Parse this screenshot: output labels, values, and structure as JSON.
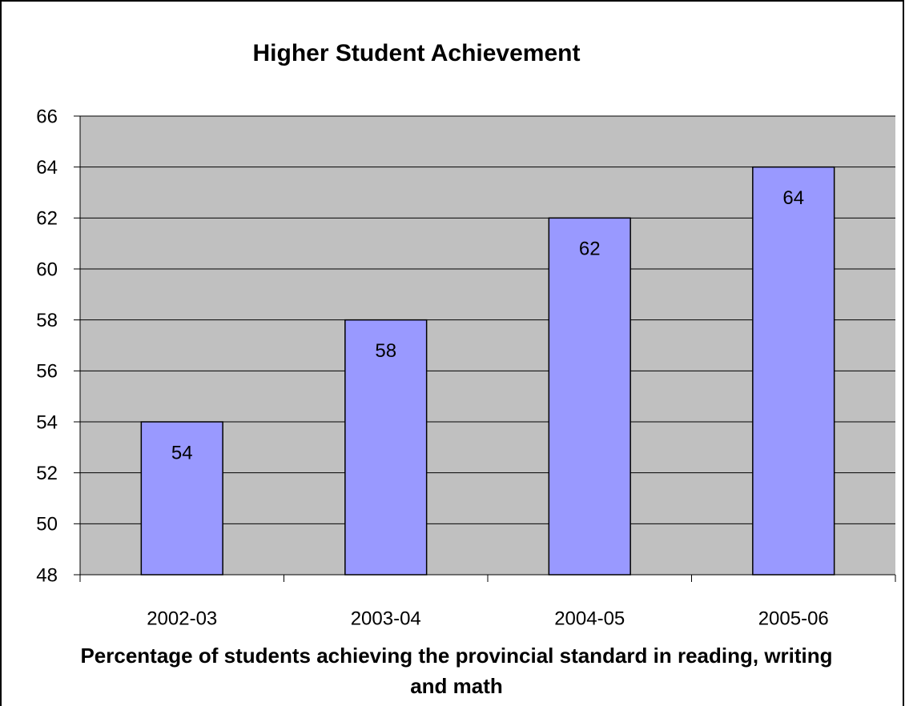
{
  "chart_data": {
    "type": "bar",
    "title": "Higher Student Achievement",
    "x_label": "Percentage of students achieving the provincial standard in reading, writing and math",
    "categories": [
      "2002-03",
      "2003-04",
      "2004-05",
      "2005-06"
    ],
    "values": [
      54,
      58,
      62,
      64
    ],
    "color": "#9999ff",
    "plot_background": "#c0c0c0",
    "ylim": [
      48,
      66
    ],
    "yticks": [
      48,
      50,
      52,
      54,
      56,
      58,
      60,
      62,
      64,
      66
    ],
    "grid": true
  }
}
